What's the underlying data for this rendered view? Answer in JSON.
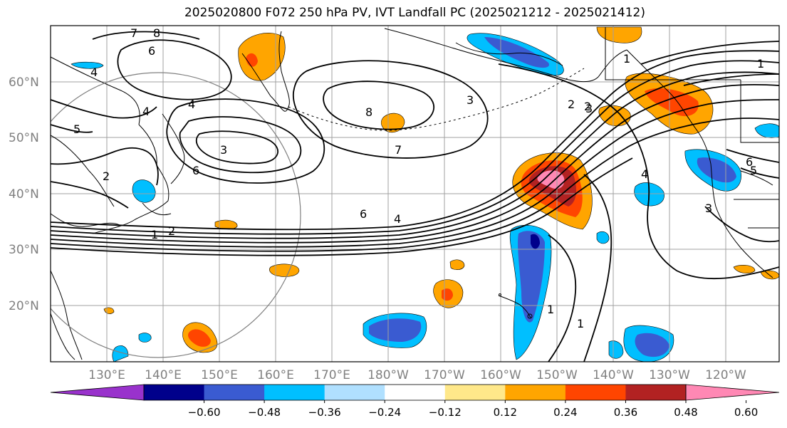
{
  "title": "2025020800 F072 250 hPa PV, IVT Landfall PC (2025021212 - 2025021412)",
  "lat_labels": [
    "60°N",
    "50°N",
    "40°N",
    "30°N",
    "20°N"
  ],
  "lon_labels": [
    "130°E",
    "140°E",
    "150°E",
    "160°E",
    "170°E",
    "180°W",
    "170°W",
    "160°W",
    "150°W",
    "140°W",
    "130°W",
    "120°W"
  ],
  "colorbar": {
    "ticks": [
      "−0.60",
      "−0.48",
      "−0.36",
      "−0.24",
      "−0.12",
      "0.12",
      "0.24",
      "0.36",
      "0.48",
      "0.60"
    ],
    "colors": [
      "#9932cc",
      "#00008b",
      "#3a5bd1",
      "#00bfff",
      "#b0e0ff",
      "#ffffff",
      "#ffe88a",
      "#ffa500",
      "#ff4500",
      "#b22222",
      "#ff88b4"
    ]
  },
  "contour_labels": [
    "8",
    "7",
    "6",
    "4",
    "5",
    "4",
    "3",
    "2",
    "1",
    "2",
    "8",
    "7",
    "6",
    "4",
    "3",
    "2",
    "1",
    "1",
    "2",
    "3",
    "4",
    "5",
    "6",
    "1",
    "1",
    "6",
    "3",
    "4"
  ]
}
